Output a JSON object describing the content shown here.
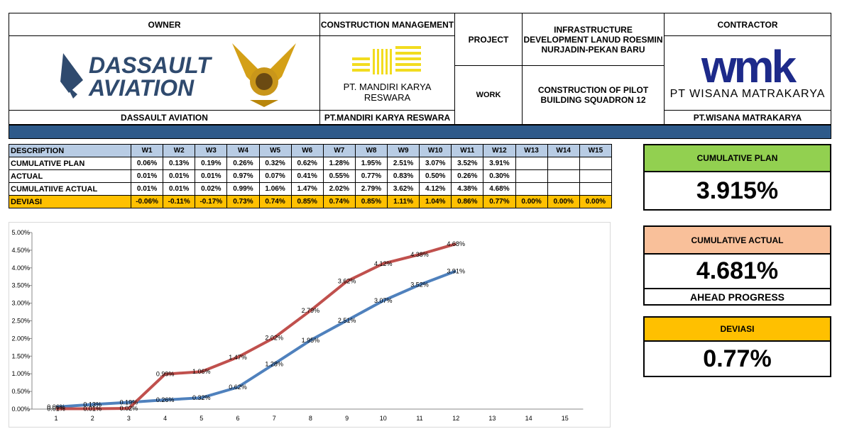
{
  "header": {
    "owner": {
      "label": "OWNER",
      "logo_text": [
        "DASSAULT",
        "AVIATION"
      ],
      "name": "DASSAULT AVIATION"
    },
    "construction_management": {
      "label": "CONSTRUCTION MANAGEMENT",
      "logo_text": "PT. MANDIRI KARYA RESWARA",
      "name": "PT.MANDIRI KARYA RESWARA"
    },
    "project": {
      "label": "PROJECT",
      "value": "INFRASTRUCTURE DEVELOPMENT LANUD ROESMIN NURJADIN-PEKAN BARU"
    },
    "work": {
      "label": "WORK",
      "value": "CONSTRUCTION OF PILOT BUILDING SQUADRON 12"
    },
    "contractor": {
      "label": "CONTRACTOR",
      "logo_text": "wmk",
      "logo_name": "PT WISANA MATRAKARYA",
      "name": "PT.WISANA MATRAKARYA"
    }
  },
  "table": {
    "columns": [
      "DESCRIPTION",
      "W1",
      "W2",
      "W3",
      "W4",
      "W5",
      "W6",
      "W7",
      "W8",
      "W9",
      "W10",
      "W11",
      "W12",
      "W13",
      "W14",
      "W15"
    ],
    "rows": [
      [
        "CUMULATIVE PLAN",
        "0.06%",
        "0.13%",
        "0.19%",
        "0.26%",
        "0.32%",
        "0.62%",
        "1.28%",
        "1.95%",
        "2.51%",
        "3.07%",
        "3.52%",
        "3.91%"
      ],
      [
        "ACTUAL",
        "0.01%",
        "0.01%",
        "0.01%",
        "0.97%",
        "0.07%",
        "0.41%",
        "0.55%",
        "0.77%",
        "0.83%",
        "0.50%",
        "0.26%",
        "0.30%"
      ],
      [
        "CUMULATIIVE ACTUAL",
        "0.01%",
        "0.01%",
        "0.02%",
        "0.99%",
        "1.06%",
        "1.47%",
        "2.02%",
        "2.79%",
        "3.62%",
        "4.12%",
        "4.38%",
        "4.68%"
      ],
      [
        "DEVIASI",
        "-0.06%",
        "-0.11%",
        "-0.17%",
        "0.73%",
        "0.74%",
        "0.85%",
        "0.74%",
        "0.85%",
        "1.11%",
        "1.04%",
        "0.86%",
        "0.77%",
        "0.00%",
        "0.00%",
        "0.00%"
      ]
    ]
  },
  "summary": [
    {
      "label": "CUMULATIVE PLAN",
      "value": "3.915%",
      "color": "#92d050"
    },
    {
      "label": "CUMULATIVE ACTUAL",
      "value": "4.681%",
      "note": "AHEAD PROGRESS",
      "color": "#f9c09a"
    },
    {
      "label": "DEVIASI",
      "value": "0.77%",
      "color": "#ffc000"
    }
  ],
  "chart_data": {
    "type": "line",
    "categories": [
      "1",
      "2",
      "3",
      "4",
      "5",
      "6",
      "7",
      "8",
      "9",
      "10",
      "11",
      "12",
      "13",
      "14",
      "15"
    ],
    "series": [
      {
        "name": "CUMULATIVE PLAN",
        "color": "#4f81bd",
        "values": [
          0.06,
          0.13,
          0.19,
          0.26,
          0.32,
          0.62,
          1.28,
          1.95,
          2.51,
          3.07,
          3.52,
          3.91,
          null,
          null,
          null
        ],
        "value_labels": [
          "0.06%",
          "0.13%",
          "0.19%",
          "0.26%",
          "0.32%",
          "0.62%",
          "1.28%",
          "1.95%",
          "2.51%",
          "3.07%",
          "3.52%",
          "3.91%",
          null,
          null,
          null
        ]
      },
      {
        "name": "CUMULATIIVE ACTUAL",
        "color": "#c0504d",
        "values": [
          0.01,
          0.01,
          0.02,
          0.99,
          1.06,
          1.47,
          2.02,
          2.79,
          3.62,
          4.12,
          4.38,
          4.68,
          null,
          null,
          null
        ],
        "value_labels": [
          "0.01%",
          "0.01%",
          "0.02%",
          "0.99%",
          "1.06%",
          "1.47%",
          "2.02%",
          "2.79%",
          "3.62%",
          "4.12%",
          "4.38%",
          "4.68%",
          null,
          null,
          null
        ]
      }
    ],
    "ylim": [
      0,
      5
    ],
    "yticks": [
      {
        "value": 0,
        "label": "0.00%"
      },
      {
        "value": 0.5,
        "label": "0.50%"
      },
      {
        "value": 1,
        "label": "1.00%"
      },
      {
        "value": 1.5,
        "label": "1.50%"
      },
      {
        "value": 2,
        "label": "2.00%"
      },
      {
        "value": 2.5,
        "label": "2.50%"
      },
      {
        "value": 3,
        "label": "3.00%"
      },
      {
        "value": 3.5,
        "label": "3.50%"
      },
      {
        "value": 4,
        "label": "4.00%"
      },
      {
        "value": 4.5,
        "label": "4.50%"
      },
      {
        "value": 5,
        "label": "5.00%"
      }
    ]
  }
}
